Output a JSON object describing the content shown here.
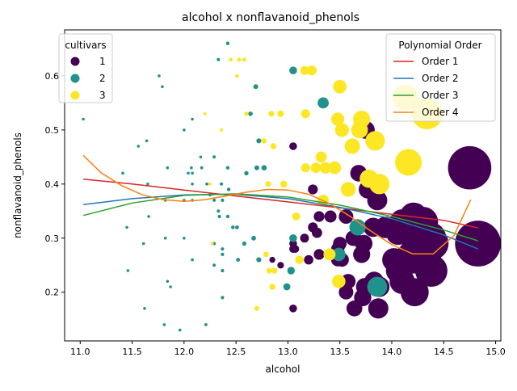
{
  "chart_data": {
    "type": "scatter",
    "title": "alcohol x nonflavanoid_phenols",
    "xlabel": "alcohol",
    "ylabel": "nonflavanoid_phenols",
    "xlim": [
      10.85,
      15.05
    ],
    "ylim": [
      0.11,
      0.685
    ],
    "xticks": [
      11.0,
      11.5,
      12.0,
      12.5,
      13.0,
      13.5,
      14.0,
      14.5,
      15.0
    ],
    "xtick_labels": [
      "11.0",
      "11.5",
      "12.0",
      "12.5",
      "13.0",
      "13.5",
      "14.0",
      "14.5",
      "15.0"
    ],
    "yticks": [
      0.2,
      0.3,
      0.4,
      0.5,
      0.6
    ],
    "ytick_labels": [
      "0.2",
      "0.3",
      "0.4",
      "0.5",
      "0.6"
    ],
    "grid": false,
    "size_encoding": "marker area grows with alcohol",
    "legend_hue": {
      "title": "cultivars",
      "placement": "top-left",
      "items": [
        {
          "label": "1",
          "color": "#440154"
        },
        {
          "label": "2",
          "color": "#21918c"
        },
        {
          "label": "3",
          "color": "#fde725"
        }
      ]
    },
    "legend_fit": {
      "title": "Polynomial Order",
      "placement": "top-right",
      "items": [
        {
          "label": "Order 1",
          "color": "#d62728"
        },
        {
          "label": "Order 2",
          "color": "#1f77b4"
        },
        {
          "label": "Order 3",
          "color": "#2ca02c"
        },
        {
          "label": "Order 4",
          "color": "#ff7f0e"
        }
      ]
    },
    "series": [
      {
        "name": "1",
        "color": "#440154",
        "points": [
          [
            13.05,
            0.47
          ],
          [
            13.24,
            0.39
          ],
          [
            13.3,
            0.34
          ],
          [
            13.41,
            0.34
          ],
          [
            13.56,
            0.34
          ],
          [
            13.68,
            0.42
          ],
          [
            13.75,
            0.5
          ],
          [
            13.77,
            0.39
          ],
          [
            13.86,
            0.37
          ],
          [
            13.82,
            0.32
          ],
          [
            13.94,
            0.32
          ],
          [
            14.06,
            0.31
          ],
          [
            14.1,
            0.33
          ],
          [
            14.21,
            0.34
          ],
          [
            14.22,
            0.3
          ],
          [
            14.3,
            0.33
          ],
          [
            14.37,
            0.3
          ],
          [
            14.39,
            0.29
          ],
          [
            14.75,
            0.43
          ],
          [
            14.83,
            0.29
          ],
          [
            13.05,
            0.29
          ],
          [
            13.05,
            0.28
          ],
          [
            13.07,
            0.28
          ],
          [
            13.16,
            0.3
          ],
          [
            13.24,
            0.32
          ],
          [
            13.28,
            0.31
          ],
          [
            13.48,
            0.28
          ],
          [
            13.5,
            0.29
          ],
          [
            13.52,
            0.26
          ],
          [
            13.63,
            0.3
          ],
          [
            13.73,
            0.29
          ],
          [
            13.48,
            0.26
          ],
          [
            13.58,
            0.22
          ],
          [
            13.56,
            0.2
          ],
          [
            13.64,
            0.17
          ],
          [
            13.71,
            0.27
          ],
          [
            13.74,
            0.21
          ],
          [
            13.72,
            0.19
          ],
          [
            13.83,
            0.22
          ],
          [
            13.87,
            0.17
          ],
          [
            13.88,
            0.21
          ],
          [
            14.02,
            0.26
          ],
          [
            14.06,
            0.24
          ],
          [
            14.1,
            0.22
          ],
          [
            14.12,
            0.26
          ],
          [
            14.19,
            0.27
          ],
          [
            14.2,
            0.26
          ],
          [
            14.22,
            0.2
          ],
          [
            14.3,
            0.27
          ],
          [
            14.38,
            0.24
          ],
          [
            13.3,
            0.27
          ],
          [
            13.2,
            0.26
          ],
          [
            13.05,
            0.17
          ],
          [
            12.93,
            0.25
          ],
          [
            12.85,
            0.26
          ]
        ]
      },
      {
        "name": "2",
        "color": "#21918c",
        "points": [
          [
            11.03,
            0.52
          ],
          [
            11.41,
            0.42
          ],
          [
            11.45,
            0.32
          ],
          [
            11.46,
            0.24
          ],
          [
            11.56,
            0.47
          ],
          [
            11.61,
            0.29
          ],
          [
            11.62,
            0.17
          ],
          [
            11.64,
            0.48
          ],
          [
            11.65,
            0.4
          ],
          [
            11.66,
            0.34
          ],
          [
            11.76,
            0.6
          ],
          [
            11.79,
            0.58
          ],
          [
            11.81,
            0.14
          ],
          [
            11.82,
            0.37
          ],
          [
            11.82,
            0.3
          ],
          [
            11.84,
            0.22
          ],
          [
            11.84,
            0.43
          ],
          [
            11.87,
            0.21
          ],
          [
            11.96,
            0.13
          ],
          [
            12.0,
            0.5
          ],
          [
            12.0,
            0.37
          ],
          [
            12.0,
            0.3
          ],
          [
            12.04,
            0.42
          ],
          [
            12.07,
            0.43
          ],
          [
            12.08,
            0.52
          ],
          [
            12.08,
            0.42
          ],
          [
            12.08,
            0.4
          ],
          [
            12.08,
            0.37
          ],
          [
            12.08,
            0.26
          ],
          [
            12.16,
            0.45
          ],
          [
            12.17,
            0.43
          ],
          [
            12.21,
            0.14
          ],
          [
            12.22,
            0.4
          ],
          [
            12.25,
            0.38
          ],
          [
            12.29,
            0.45
          ],
          [
            12.29,
            0.37
          ],
          [
            12.29,
            0.29
          ],
          [
            12.29,
            0.25
          ],
          [
            12.33,
            0.63
          ],
          [
            12.33,
            0.35
          ],
          [
            12.34,
            0.34
          ],
          [
            12.36,
            0.4
          ],
          [
            12.37,
            0.37
          ],
          [
            12.37,
            0.28
          ],
          [
            12.37,
            0.27
          ],
          [
            12.37,
            0.24
          ],
          [
            12.37,
            0.19
          ],
          [
            12.42,
            0.66
          ],
          [
            12.42,
            0.43
          ],
          [
            12.43,
            0.39
          ],
          [
            12.42,
            0.34
          ],
          [
            12.47,
            0.32
          ],
          [
            12.51,
            0.32
          ],
          [
            12.52,
            0.26
          ],
          [
            12.58,
            0.29
          ],
          [
            12.6,
            0.42
          ],
          [
            12.64,
            0.53
          ],
          [
            12.67,
            0.3
          ],
          [
            12.69,
            0.58
          ],
          [
            12.7,
            0.43
          ],
          [
            12.72,
            0.48
          ],
          [
            12.72,
            0.26
          ],
          [
            12.77,
            0.43
          ],
          [
            12.99,
            0.21
          ],
          [
            13.03,
            0.24
          ],
          [
            13.05,
            0.61
          ],
          [
            13.05,
            0.3
          ],
          [
            13.34,
            0.55
          ],
          [
            13.49,
            0.27
          ],
          [
            13.67,
            0.32
          ],
          [
            13.86,
            0.21
          ]
        ]
      },
      {
        "name": "3",
        "color": "#fde725",
        "points": [
          [
            12.2,
            0.53
          ],
          [
            12.25,
            0.4
          ],
          [
            12.27,
            0.29
          ],
          [
            12.36,
            0.5
          ],
          [
            12.45,
            0.63
          ],
          [
            12.51,
            0.6
          ],
          [
            12.53,
            0.63
          ],
          [
            12.58,
            0.63
          ],
          [
            12.6,
            0.53
          ],
          [
            12.7,
            0.17
          ],
          [
            12.77,
            0.48
          ],
          [
            12.79,
            0.27
          ],
          [
            12.81,
            0.4
          ],
          [
            12.82,
            0.24
          ],
          [
            12.84,
            0.53
          ],
          [
            12.85,
            0.21
          ],
          [
            12.86,
            0.47
          ],
          [
            12.87,
            0.24
          ],
          [
            12.93,
            0.53
          ],
          [
            12.96,
            0.4
          ],
          [
            13.08,
            0.34
          ],
          [
            13.11,
            0.26
          ],
          [
            13.16,
            0.61
          ],
          [
            13.17,
            0.53
          ],
          [
            13.17,
            0.43
          ],
          [
            13.23,
            0.61
          ],
          [
            13.27,
            0.43
          ],
          [
            13.32,
            0.45
          ],
          [
            13.34,
            0.37
          ],
          [
            13.36,
            0.43
          ],
          [
            13.4,
            0.27
          ],
          [
            13.45,
            0.43
          ],
          [
            13.48,
            0.52
          ],
          [
            13.49,
            0.22
          ],
          [
            13.5,
            0.58
          ],
          [
            13.52,
            0.5
          ],
          [
            13.58,
            0.39
          ],
          [
            13.62,
            0.47
          ],
          [
            13.69,
            0.5
          ],
          [
            13.71,
            0.52
          ],
          [
            13.78,
            0.41
          ],
          [
            13.84,
            0.48
          ],
          [
            13.88,
            0.4
          ],
          [
            14.13,
            0.56
          ],
          [
            14.16,
            0.44
          ],
          [
            14.34,
            0.53
          ]
        ]
      }
    ],
    "fit_curves": [
      {
        "name": "Order 1",
        "color": "#d62728",
        "x": [
          11.03,
          11.5,
          12.0,
          12.5,
          13.0,
          13.5,
          14.0,
          14.5,
          14.83
        ],
        "y": [
          0.409,
          0.4,
          0.389,
          0.378,
          0.367,
          0.356,
          0.344,
          0.333,
          0.319
        ]
      },
      {
        "name": "Order 2",
        "color": "#1f77b4",
        "x": [
          11.03,
          11.5,
          12.0,
          12.5,
          13.0,
          13.5,
          14.0,
          14.5,
          14.83
        ],
        "y": [
          0.362,
          0.373,
          0.38,
          0.381,
          0.373,
          0.357,
          0.336,
          0.306,
          0.28
        ]
      },
      {
        "name": "Order 3",
        "color": "#2ca02c",
        "x": [
          11.03,
          11.5,
          12.0,
          12.5,
          13.0,
          13.5,
          14.0,
          14.5,
          14.83
        ],
        "y": [
          0.342,
          0.365,
          0.379,
          0.382,
          0.376,
          0.361,
          0.34,
          0.315,
          0.295
        ]
      },
      {
        "name": "Order 4",
        "color": "#ff7f0e",
        "x": [
          11.03,
          11.2,
          11.4,
          11.6,
          11.8,
          12.0,
          12.2,
          12.4,
          12.6,
          12.8,
          13.0,
          13.2,
          13.4,
          13.6,
          13.8,
          14.0,
          14.2,
          14.4,
          14.6,
          14.76
        ],
        "y": [
          0.453,
          0.421,
          0.397,
          0.38,
          0.371,
          0.368,
          0.371,
          0.378,
          0.385,
          0.39,
          0.389,
          0.381,
          0.364,
          0.34,
          0.313,
          0.288,
          0.271,
          0.271,
          0.305,
          0.371
        ]
      }
    ]
  }
}
